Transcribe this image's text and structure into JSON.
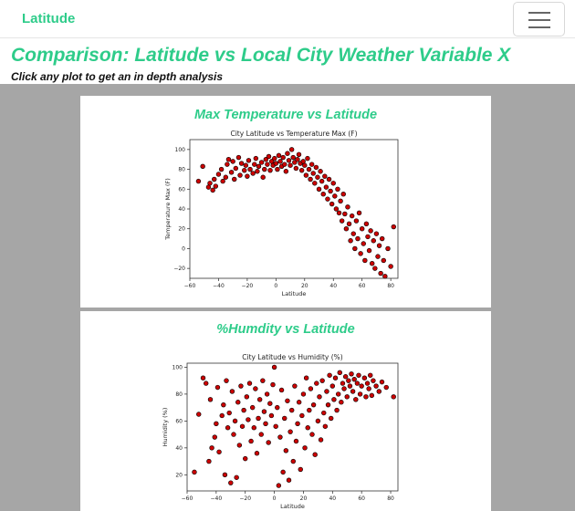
{
  "navbar": {
    "brand": "Latitude"
  },
  "header": {
    "title": "Comparison: Latitude vs Local City Weather Variable X",
    "subtitle": "Click any plot to get an in depth analysis"
  },
  "cards": [
    {
      "heading": "Max Temperature vs Latitude"
    },
    {
      "heading": "%Humdity vs Latitude"
    }
  ],
  "colors": {
    "accent": "#2ecc8a",
    "gallery_bg": "#a6a6a6",
    "marker_fill": "#cc0000",
    "marker_edge": "#000000"
  },
  "chart_data": [
    {
      "type": "scatter",
      "title": "City Latitude vs Temperature Max (F)",
      "xlabel": "Latitude",
      "ylabel": "Temperature Max (F)",
      "xlim": [
        -60,
        85
      ],
      "ylim": [
        -30,
        110
      ],
      "xticks": [
        -60,
        -40,
        -20,
        0,
        20,
        40,
        60,
        80
      ],
      "yticks": [
        -20,
        0,
        20,
        40,
        60,
        80,
        100
      ],
      "grid": false,
      "points": [
        [
          -54,
          68
        ],
        [
          -51,
          83
        ],
        [
          -47,
          62
        ],
        [
          -46,
          66
        ],
        [
          -44,
          59
        ],
        [
          -43,
          70
        ],
        [
          -42,
          63
        ],
        [
          -40,
          75
        ],
        [
          -38,
          80
        ],
        [
          -37,
          68
        ],
        [
          -35,
          72
        ],
        [
          -34,
          85
        ],
        [
          -33,
          90
        ],
        [
          -31,
          77
        ],
        [
          -30,
          88
        ],
        [
          -29,
          70
        ],
        [
          -28,
          81
        ],
        [
          -26,
          92
        ],
        [
          -25,
          74
        ],
        [
          -24,
          86
        ],
        [
          -22,
          79
        ],
        [
          -21,
          84
        ],
        [
          -20,
          73
        ],
        [
          -19,
          89
        ],
        [
          -18,
          80
        ],
        [
          -16,
          76
        ],
        [
          -15,
          85
        ],
        [
          -14,
          91
        ],
        [
          -13,
          78
        ],
        [
          -12,
          83
        ],
        [
          -10,
          87
        ],
        [
          -9,
          72
        ],
        [
          -8,
          80
        ],
        [
          -7,
          90
        ],
        [
          -6,
          85
        ],
        [
          -5,
          93
        ],
        [
          -4,
          79
        ],
        [
          -3,
          88
        ],
        [
          -2,
          84
        ],
        [
          -1,
          91
        ],
        [
          0,
          86
        ],
        [
          1,
          80
        ],
        [
          2,
          94
        ],
        [
          3,
          88
        ],
        [
          4,
          83
        ],
        [
          5,
          92
        ],
        [
          6,
          85
        ],
        [
          7,
          78
        ],
        [
          8,
          96
        ],
        [
          9,
          89
        ],
        [
          10,
          84
        ],
        [
          11,
          100
        ],
        [
          12,
          92
        ],
        [
          13,
          87
        ],
        [
          14,
          81
        ],
        [
          15,
          90
        ],
        [
          16,
          95
        ],
        [
          17,
          86
        ],
        [
          18,
          79
        ],
        [
          19,
          88
        ],
        [
          20,
          84
        ],
        [
          21,
          74
        ],
        [
          22,
          91
        ],
        [
          23,
          80
        ],
        [
          24,
          70
        ],
        [
          25,
          85
        ],
        [
          26,
          76
        ],
        [
          27,
          66
        ],
        [
          28,
          82
        ],
        [
          29,
          72
        ],
        [
          30,
          60
        ],
        [
          31,
          78
        ],
        [
          32,
          68
        ],
        [
          33,
          55
        ],
        [
          34,
          73
        ],
        [
          35,
          62
        ],
        [
          36,
          50
        ],
        [
          37,
          70
        ],
        [
          38,
          58
        ],
        [
          39,
          45
        ],
        [
          40,
          66
        ],
        [
          41,
          53
        ],
        [
          42,
          40
        ],
        [
          43,
          60
        ],
        [
          44,
          36
        ],
        [
          45,
          48
        ],
        [
          46,
          28
        ],
        [
          47,
          55
        ],
        [
          48,
          35
        ],
        [
          49,
          20
        ],
        [
          50,
          42
        ],
        [
          51,
          25
        ],
        [
          52,
          8
        ],
        [
          53,
          33
        ],
        [
          54,
          15
        ],
        [
          55,
          0
        ],
        [
          56,
          28
        ],
        [
          57,
          10
        ],
        [
          58,
          36
        ],
        [
          59,
          -5
        ],
        [
          60,
          20
        ],
        [
          61,
          5
        ],
        [
          62,
          -12
        ],
        [
          63,
          25
        ],
        [
          64,
          12
        ],
        [
          65,
          -2
        ],
        [
          66,
          18
        ],
        [
          67,
          -15
        ],
        [
          68,
          8
        ],
        [
          69,
          -20
        ],
        [
          70,
          15
        ],
        [
          71,
          -8
        ],
        [
          72,
          3
        ],
        [
          73,
          -25
        ],
        [
          74,
          10
        ],
        [
          75,
          -12
        ],
        [
          76,
          -28
        ],
        [
          78,
          0
        ],
        [
          80,
          -18
        ],
        [
          82,
          22
        ]
      ]
    },
    {
      "type": "scatter",
      "title": "City Latitude vs Humidity (%)",
      "xlabel": "Latitude",
      "ylabel": "Humidity (%)",
      "xlim": [
        -60,
        85
      ],
      "ylim": [
        8,
        103
      ],
      "xticks": [
        -60,
        -40,
        -20,
        0,
        20,
        40,
        60,
        80
      ],
      "yticks": [
        20,
        40,
        60,
        80,
        100
      ],
      "grid": false,
      "points": [
        [
          -55,
          22
        ],
        [
          -52,
          65
        ],
        [
          -49,
          92
        ],
        [
          -47,
          88
        ],
        [
          -45,
          30
        ],
        [
          -44,
          76
        ],
        [
          -43,
          40
        ],
        [
          -41,
          48
        ],
        [
          -40,
          58
        ],
        [
          -39,
          85
        ],
        [
          -38,
          37
        ],
        [
          -36,
          64
        ],
        [
          -35,
          72
        ],
        [
          -34,
          20
        ],
        [
          -33,
          90
        ],
        [
          -32,
          55
        ],
        [
          -31,
          66
        ],
        [
          -30,
          14
        ],
        [
          -29,
          82
        ],
        [
          -28,
          50
        ],
        [
          -27,
          60
        ],
        [
          -26,
          18
        ],
        [
          -25,
          74
        ],
        [
          -24,
          42
        ],
        [
          -23,
          86
        ],
        [
          -22,
          56
        ],
        [
          -21,
          68
        ],
        [
          -20,
          32
        ],
        [
          -19,
          78
        ],
        [
          -18,
          61
        ],
        [
          -17,
          88
        ],
        [
          -16,
          45
        ],
        [
          -15,
          70
        ],
        [
          -14,
          55
        ],
        [
          -13,
          84
        ],
        [
          -12,
          36
        ],
        [
          -11,
          62
        ],
        [
          -10,
          76
        ],
        [
          -9,
          50
        ],
        [
          -8,
          90
        ],
        [
          -7,
          67
        ],
        [
          -6,
          58
        ],
        [
          -5,
          80
        ],
        [
          -4,
          44
        ],
        [
          -3,
          73
        ],
        [
          -2,
          64
        ],
        [
          -1,
          87
        ],
        [
          0,
          100
        ],
        [
          1,
          56
        ],
        [
          2,
          70
        ],
        [
          3,
          12
        ],
        [
          4,
          48
        ],
        [
          5,
          83
        ],
        [
          6,
          22
        ],
        [
          7,
          62
        ],
        [
          8,
          38
        ],
        [
          9,
          75
        ],
        [
          10,
          16
        ],
        [
          11,
          52
        ],
        [
          12,
          68
        ],
        [
          13,
          30
        ],
        [
          14,
          86
        ],
        [
          15,
          45
        ],
        [
          16,
          58
        ],
        [
          17,
          74
        ],
        [
          18,
          24
        ],
        [
          19,
          64
        ],
        [
          20,
          80
        ],
        [
          21,
          40
        ],
        [
          22,
          92
        ],
        [
          23,
          55
        ],
        [
          24,
          68
        ],
        [
          25,
          84
        ],
        [
          26,
          50
        ],
        [
          27,
          72
        ],
        [
          28,
          35
        ],
        [
          29,
          88
        ],
        [
          30,
          60
        ],
        [
          31,
          78
        ],
        [
          32,
          46
        ],
        [
          33,
          90
        ],
        [
          34,
          66
        ],
        [
          35,
          56
        ],
        [
          36,
          82
        ],
        [
          37,
          72
        ],
        [
          38,
          94
        ],
        [
          39,
          62
        ],
        [
          40,
          86
        ],
        [
          41,
          76
        ],
        [
          42,
          92
        ],
        [
          43,
          68
        ],
        [
          44,
          80
        ],
        [
          45,
          96
        ],
        [
          46,
          74
        ],
        [
          47,
          88
        ],
        [
          48,
          84
        ],
        [
          49,
          93
        ],
        [
          50,
          78
        ],
        [
          51,
          90
        ],
        [
          52,
          86
        ],
        [
          53,
          95
        ],
        [
          54,
          82
        ],
        [
          55,
          91
        ],
        [
          56,
          76
        ],
        [
          57,
          88
        ],
        [
          58,
          94
        ],
        [
          59,
          80
        ],
        [
          60,
          86
        ],
        [
          62,
          92
        ],
        [
          63,
          78
        ],
        [
          64,
          88
        ],
        [
          65,
          84
        ],
        [
          66,
          94
        ],
        [
          67,
          79
        ],
        [
          68,
          90
        ],
        [
          70,
          86
        ],
        [
          72,
          82
        ],
        [
          74,
          89
        ],
        [
          77,
          85
        ],
        [
          82,
          78
        ]
      ]
    }
  ]
}
